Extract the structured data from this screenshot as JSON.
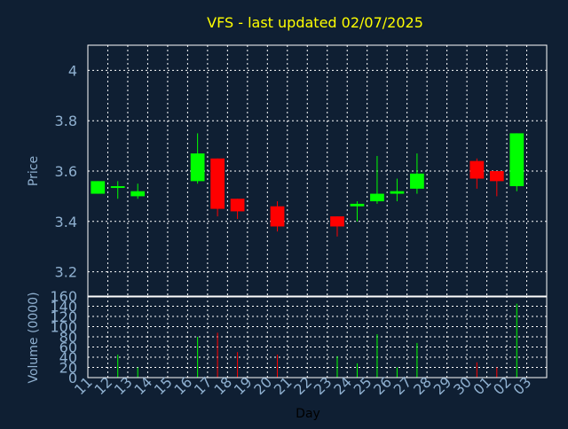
{
  "chart_data": [
    {
      "type": "candlestick",
      "title": "VFS - last updated 02/07/2025",
      "ylabel": "Price",
      "ylim": [
        3.1,
        4.1
      ],
      "yticks": [
        3.2,
        3.4,
        3.6,
        3.8,
        4
      ],
      "ytick_labels": [
        "3.2",
        "3.4",
        "3.6",
        "3.8",
        "4"
      ],
      "grid": true,
      "days": [
        "11",
        "12",
        "13",
        "14",
        "15",
        "16",
        "17",
        "18",
        "19",
        "20",
        "21",
        "22",
        "23",
        "24",
        "25",
        "26",
        "27",
        "28",
        "29",
        "30",
        "01",
        "02",
        "03"
      ],
      "candles": [
        {
          "day": "11",
          "open": 3.51,
          "high": 3.56,
          "low": 3.51,
          "close": 3.56
        },
        {
          "day": "12",
          "open": 3.535,
          "high": 3.56,
          "low": 3.49,
          "close": 3.54
        },
        {
          "day": "13",
          "open": 3.5,
          "high": 3.55,
          "low": 3.49,
          "close": 3.52
        },
        {
          "day": "16",
          "open": 3.56,
          "high": 3.75,
          "low": 3.55,
          "close": 3.67
        },
        {
          "day": "17",
          "open": 3.65,
          "high": 3.65,
          "low": 3.42,
          "close": 3.45
        },
        {
          "day": "18",
          "open": 3.49,
          "high": 3.49,
          "low": 3.41,
          "close": 3.44
        },
        {
          "day": "20",
          "open": 3.46,
          "high": 3.48,
          "low": 3.36,
          "close": 3.38
        },
        {
          "day": "23",
          "open": 3.42,
          "high": 3.42,
          "low": 3.34,
          "close": 3.38
        },
        {
          "day": "24",
          "open": 3.46,
          "high": 3.48,
          "low": 3.4,
          "close": 3.47
        },
        {
          "day": "25",
          "open": 3.48,
          "high": 3.66,
          "low": 3.47,
          "close": 3.51
        },
        {
          "day": "26",
          "open": 3.51,
          "high": 3.57,
          "low": 3.48,
          "close": 3.52
        },
        {
          "day": "27",
          "open": 3.53,
          "high": 3.67,
          "low": 3.51,
          "close": 3.59
        },
        {
          "day": "30",
          "open": 3.64,
          "high": 3.65,
          "low": 3.53,
          "close": 3.57
        },
        {
          "day": "01",
          "open": 3.6,
          "high": 3.6,
          "low": 3.5,
          "close": 3.56
        },
        {
          "day": "02",
          "open": 3.54,
          "high": 3.75,
          "low": 3.52,
          "close": 3.75
        }
      ],
      "up_color": "#00ff00",
      "down_color": "#ff0000"
    },
    {
      "type": "bar",
      "ylabel": "Volume (0000)",
      "xlabel": "Day",
      "ylim": [
        0,
        160
      ],
      "yticks": [
        0,
        20,
        40,
        60,
        80,
        100,
        120,
        140,
        160
      ],
      "ytick_labels": [
        "0",
        "20",
        "40",
        "60",
        "80",
        "100",
        "120",
        "140",
        "160"
      ],
      "grid": true,
      "categories": [
        "11",
        "12",
        "13",
        "14",
        "15",
        "16",
        "17",
        "18",
        "19",
        "20",
        "21",
        "22",
        "23",
        "24",
        "25",
        "26",
        "27",
        "28",
        "29",
        "30",
        "01",
        "02",
        "03"
      ],
      "values": [
        0,
        45,
        20,
        0,
        0,
        80,
        88,
        50,
        0,
        45,
        0,
        0,
        42,
        28,
        85,
        20,
        68,
        0,
        0,
        30,
        20,
        145,
        0
      ],
      "bar_colors": [
        "",
        "#00ff00",
        "#00ff00",
        "",
        "",
        "#00ff00",
        "#ff0000",
        "#ff0000",
        "",
        "#ff0000",
        "",
        "",
        "#00ff00",
        "#00ff00",
        "#00ff00",
        "#00ff00",
        "#00ff00",
        "",
        "",
        "#ff0000",
        "#ff0000",
        "#00ff00",
        ""
      ]
    }
  ],
  "colors": {
    "background": "#0f1f33",
    "axis_text": "#8fb0d0",
    "title": "#ffff00",
    "frame": "#ffffff",
    "grid": "#ffffff"
  }
}
